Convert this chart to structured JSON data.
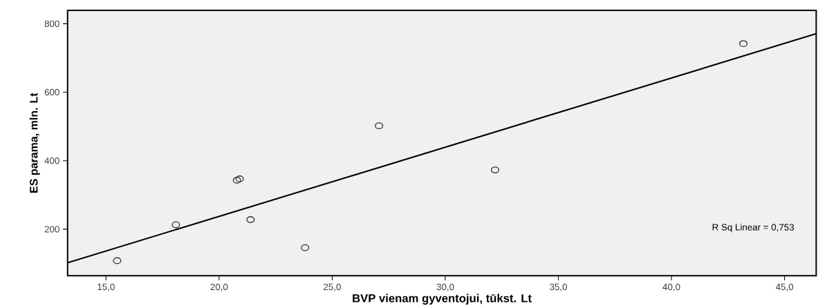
{
  "chart_data": {
    "type": "scatter",
    "xlabel": "BVP vienam gyventojui, tūkst. Lt",
    "ylabel": "ES parama, mln. Lt",
    "annotations": [
      "R Sq Linear = 0,753"
    ],
    "series": [
      {
        "color": "#333333",
        "marker": "circle",
        "x": [
          15.49,
          18.09,
          20.79,
          20.91,
          21.39,
          23.8,
          27.07,
          32.2,
          43.18
        ],
        "values": [
          108,
          213,
          343,
          347,
          228,
          146,
          502,
          373,
          742
        ]
      },
      {
        "type": "line",
        "color": "#000000",
        "x": [
          13.3,
          46.4
        ],
        "values": [
          102,
          771
        ]
      }
    ],
    "xlim": [
      13.3,
      46.4
    ],
    "ylim": [
      64,
      839
    ],
    "xticks": [
      {
        "value": 15,
        "label": "15,0"
      },
      {
        "value": 20,
        "label": "20,0"
      },
      {
        "value": 25,
        "label": "25,0"
      },
      {
        "value": 30,
        "label": "30,0"
      },
      {
        "value": 35,
        "label": "35,0"
      },
      {
        "value": 40,
        "label": "40,0"
      },
      {
        "value": 45,
        "label": "45,0"
      }
    ],
    "yticks": [
      200,
      400,
      600,
      800
    ]
  }
}
